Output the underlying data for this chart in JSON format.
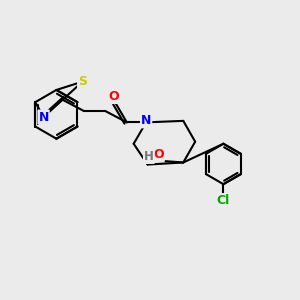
{
  "background_color": "#ebebeb",
  "bond_color": "#000000",
  "S_color": "#cccc00",
  "N_color": "#0000ff",
  "O_color": "#ff0000",
  "Cl_color": "#00aa00",
  "H_color": "#777777",
  "bond_width": 1.5,
  "figsize": [
    3.0,
    3.0
  ],
  "dpi": 100,
  "xlim": [
    0,
    10
  ],
  "ylim": [
    0,
    10
  ]
}
